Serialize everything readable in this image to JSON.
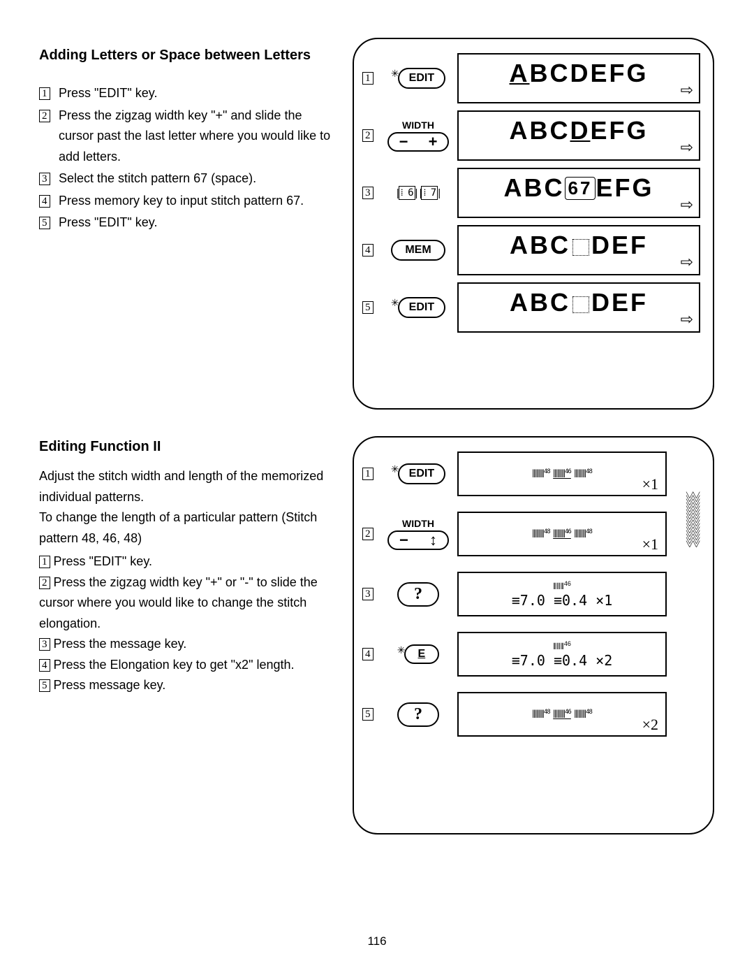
{
  "page_number": "116",
  "section1": {
    "title": "Adding Letters or Space between Letters",
    "steps": [
      {
        "n": "1",
        "text": "Press \"EDIT\" key."
      },
      {
        "n": "2",
        "text": "Press the zigzag width key \"+\" and slide the cursor past the last letter where you would like to add letters."
      },
      {
        "n": "3",
        "text": "Select the stitch pattern 67 (space)."
      },
      {
        "n": "4",
        "text": "Press memory key to input stitch pattern 67."
      },
      {
        "n": "5",
        "text": "Press \"EDIT\" key."
      }
    ]
  },
  "fig1": {
    "rows": [
      {
        "n": "1",
        "key": {
          "type": "edit",
          "label": "EDIT"
        },
        "screen": {
          "text": "ABCDEFG",
          "cursor_idx": 0
        }
      },
      {
        "n": "2",
        "key": {
          "type": "width",
          "caption": "WIDTH",
          "minus": "−",
          "plus": "+"
        },
        "screen": {
          "text": "ABCDEFG",
          "cursor_idx": 3
        }
      },
      {
        "n": "3",
        "key": {
          "type": "digits",
          "left": "6",
          "right": "7"
        },
        "screen": {
          "text": "ABC67EFG",
          "cursor_display": "special67"
        }
      },
      {
        "n": "4",
        "key": {
          "type": "mem",
          "label": "MEM"
        },
        "screen": {
          "text": "ABC▯DEF",
          "dotted": true
        }
      },
      {
        "n": "5",
        "key": {
          "type": "edit",
          "label": "EDIT"
        },
        "screen": {
          "text": "ABC▯DEF",
          "dotted": true
        }
      }
    ],
    "arrow": "⇨"
  },
  "section2": {
    "title": "Editing Function II",
    "intro1": "Adjust the stitch width and length of the memorized individual patterns.",
    "intro2": "To change the length of a particular pattern (Stitch pattern 48, 46, 48)",
    "steps": [
      {
        "n": "1",
        "text": "Press \"EDIT\" key."
      },
      {
        "n": "2",
        "text": "Press the zigzag width key \"+\" or \"-\" to slide the cursor where you would like to change the stitch elongation."
      },
      {
        "n": "3",
        "text": "Press the message key."
      },
      {
        "n": "4",
        "text": "Press the Elongation key to get \"x2\" length."
      },
      {
        "n": "5",
        "text": "Press message key."
      }
    ]
  },
  "fig2": {
    "rows": [
      {
        "n": "1",
        "key": {
          "type": "edit",
          "label": "EDIT"
        },
        "screen": {
          "mode": "pat3",
          "mult": "×1"
        }
      },
      {
        "n": "2",
        "key": {
          "type": "width",
          "caption": "WIDTH",
          "minus": "−",
          "plus": "+"
        },
        "screen": {
          "mode": "pat3",
          "mult": "×1"
        }
      },
      {
        "n": "3",
        "key": {
          "type": "msg",
          "label": "?"
        },
        "screen": {
          "mode": "single",
          "line": "≡7.0 ≡0.4 ×1"
        }
      },
      {
        "n": "4",
        "key": {
          "type": "elong",
          "label": "E"
        },
        "screen": {
          "mode": "single",
          "line": "≡7.0 ≡0.4 ×2"
        }
      },
      {
        "n": "5",
        "key": {
          "type": "msg",
          "label": "?"
        },
        "screen": {
          "mode": "pat3",
          "mult": "×2"
        }
      }
    ]
  },
  "colors": {
    "ink": "#000000",
    "bg": "#ffffff"
  }
}
